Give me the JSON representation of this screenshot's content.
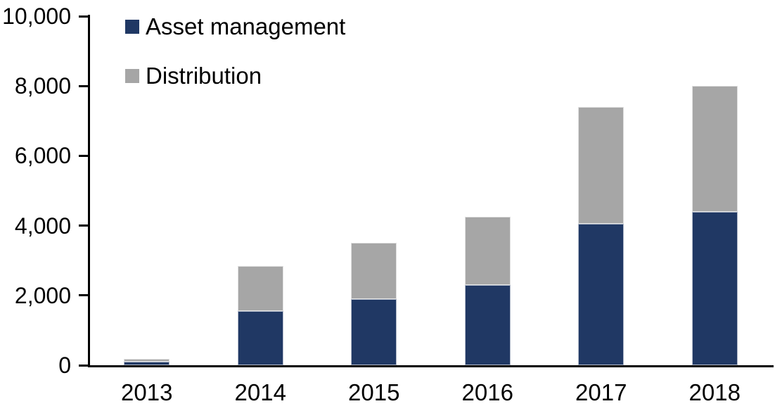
{
  "chart_data": {
    "type": "bar",
    "stacked": true,
    "title": "",
    "xlabel": "",
    "ylabel": "",
    "categories": [
      "2013",
      "2014",
      "2015",
      "2016",
      "2017",
      "2018"
    ],
    "series": [
      {
        "name": "Asset management",
        "color": "#203864",
        "values": [
          100,
          1550,
          1900,
          2300,
          4050,
          4400
        ]
      },
      {
        "name": "Distribution",
        "color": "#A6A6A6",
        "values": [
          90,
          1300,
          1600,
          1950,
          3350,
          3600
        ]
      }
    ],
    "totals": [
      190,
      2850,
      3500,
      4250,
      7400,
      8000
    ],
    "ylim": [
      0,
      10000
    ],
    "yticks": [
      0,
      2000,
      4000,
      6000,
      8000,
      10000
    ],
    "ytick_labels": [
      "0",
      "2,000",
      "4,000",
      "6,000",
      "8,000",
      "10,000"
    ],
    "grid": false,
    "legend_position": "top-left",
    "axis_color": "#000000",
    "background_color": "#FFFFFF"
  }
}
